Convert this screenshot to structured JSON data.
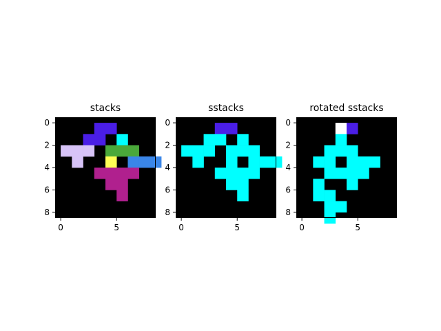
{
  "chart_data": [
    {
      "type": "heatmap",
      "title": "stacks",
      "xlabel": "",
      "ylabel": "",
      "xlim": [
        -0.5,
        8.5
      ],
      "ylim": [
        8.5,
        -0.5
      ],
      "xticks": [
        0,
        5
      ],
      "yticks": [
        0,
        2,
        4,
        6,
        8
      ],
      "grid": false,
      "background": "#000000",
      "cells": [
        {
          "row": 0,
          "col": 3,
          "color": "#4a1ee6"
        },
        {
          "row": 0,
          "col": 4,
          "color": "#4a1ee6"
        },
        {
          "row": 1,
          "col": 2,
          "color": "#4a1ee6"
        },
        {
          "row": 1,
          "col": 3,
          "color": "#4a1ee6"
        },
        {
          "row": 1,
          "col": 5,
          "color": "#00ffff"
        },
        {
          "row": 2,
          "col": 0,
          "color": "#d7c3f7"
        },
        {
          "row": 2,
          "col": 1,
          "color": "#d7c3f7"
        },
        {
          "row": 2,
          "col": 2,
          "color": "#d7c3f7"
        },
        {
          "row": 2,
          "col": 4,
          "color": "#4aa83a"
        },
        {
          "row": 2,
          "col": 5,
          "color": "#4aa83a"
        },
        {
          "row": 2,
          "col": 6,
          "color": "#4aa83a"
        },
        {
          "row": 3,
          "col": 1,
          "color": "#d7c3f7"
        },
        {
          "row": 3,
          "col": 4,
          "color": "#ffff55"
        },
        {
          "row": 3,
          "col": 6,
          "color": "#3a86e8"
        },
        {
          "row": 3,
          "col": 7,
          "color": "#3a86e8"
        },
        {
          "row": 3,
          "col": 8,
          "color": "#3a86e8"
        },
        {
          "row": 4,
          "col": 3,
          "color": "#b0208e"
        },
        {
          "row": 4,
          "col": 4,
          "color": "#b0208e"
        },
        {
          "row": 4,
          "col": 5,
          "color": "#b0208e"
        },
        {
          "row": 4,
          "col": 6,
          "color": "#b0208e"
        },
        {
          "row": 5,
          "col": 4,
          "color": "#b0208e"
        },
        {
          "row": 5,
          "col": 5,
          "color": "#b0208e"
        },
        {
          "row": 6,
          "col": 5,
          "color": "#b0208e"
        }
      ]
    },
    {
      "type": "heatmap",
      "title": "sstacks",
      "xlabel": "",
      "ylabel": "",
      "xlim": [
        -0.5,
        8.5
      ],
      "ylim": [
        8.5,
        -0.5
      ],
      "xticks": [
        0,
        5
      ],
      "yticks": [
        0,
        2,
        4,
        6,
        8
      ],
      "grid": false,
      "background": "#000000",
      "cells": [
        {
          "row": 0,
          "col": 3,
          "color": "#4a1ee6"
        },
        {
          "row": 0,
          "col": 4,
          "color": "#4a1ee6"
        },
        {
          "row": 1,
          "col": 2,
          "color": "#00ffff"
        },
        {
          "row": 1,
          "col": 3,
          "color": "#00ffff"
        },
        {
          "row": 1,
          "col": 5,
          "color": "#00ffff"
        },
        {
          "row": 2,
          "col": 0,
          "color": "#00ffff"
        },
        {
          "row": 2,
          "col": 1,
          "color": "#00ffff"
        },
        {
          "row": 2,
          "col": 2,
          "color": "#00ffff"
        },
        {
          "row": 2,
          "col": 4,
          "color": "#00ffff"
        },
        {
          "row": 2,
          "col": 5,
          "color": "#00ffff"
        },
        {
          "row": 2,
          "col": 6,
          "color": "#00ffff"
        },
        {
          "row": 3,
          "col": 1,
          "color": "#00ffff"
        },
        {
          "row": 3,
          "col": 4,
          "color": "#00ffff"
        },
        {
          "row": 3,
          "col": 6,
          "color": "#00ffff"
        },
        {
          "row": 3,
          "col": 7,
          "color": "#00ffff"
        },
        {
          "row": 3,
          "col": 8,
          "color": "#00ffff"
        },
        {
          "row": 4,
          "col": 3,
          "color": "#00ffff"
        },
        {
          "row": 4,
          "col": 4,
          "color": "#00ffff"
        },
        {
          "row": 4,
          "col": 5,
          "color": "#00ffff"
        },
        {
          "row": 4,
          "col": 6,
          "color": "#00ffff"
        },
        {
          "row": 5,
          "col": 4,
          "color": "#00ffff"
        },
        {
          "row": 5,
          "col": 5,
          "color": "#00ffff"
        },
        {
          "row": 6,
          "col": 5,
          "color": "#00ffff"
        }
      ]
    },
    {
      "type": "heatmap",
      "title": "rotated sstacks",
      "xlabel": "",
      "ylabel": "",
      "xlim": [
        -0.5,
        8.5
      ],
      "ylim": [
        8.5,
        -0.5
      ],
      "xticks": [
        0,
        5
      ],
      "yticks": [
        0,
        2,
        4,
        6,
        8
      ],
      "grid": false,
      "background": "#000000",
      "cells": [
        {
          "row": 0,
          "col": 3,
          "color": "#ffffff"
        },
        {
          "row": 0,
          "col": 4,
          "color": "#4a1ee6"
        },
        {
          "row": 1,
          "col": 3,
          "color": "#00ffff"
        },
        {
          "row": 2,
          "col": 2,
          "color": "#00ffff"
        },
        {
          "row": 2,
          "col": 3,
          "color": "#00ffff"
        },
        {
          "row": 2,
          "col": 4,
          "color": "#00ffff"
        },
        {
          "row": 3,
          "col": 1,
          "color": "#00ffff"
        },
        {
          "row": 3,
          "col": 2,
          "color": "#00ffff"
        },
        {
          "row": 3,
          "col": 4,
          "color": "#00ffff"
        },
        {
          "row": 3,
          "col": 5,
          "color": "#00ffff"
        },
        {
          "row": 3,
          "col": 6,
          "color": "#00ffff"
        },
        {
          "row": 4,
          "col": 2,
          "color": "#00ffff"
        },
        {
          "row": 4,
          "col": 3,
          "color": "#00ffff"
        },
        {
          "row": 4,
          "col": 4,
          "color": "#00ffff"
        },
        {
          "row": 4,
          "col": 5,
          "color": "#00ffff"
        },
        {
          "row": 5,
          "col": 1,
          "color": "#00ffff"
        },
        {
          "row": 5,
          "col": 4,
          "color": "#00ffff"
        },
        {
          "row": 6,
          "col": 1,
          "color": "#00ffff"
        },
        {
          "row": 6,
          "col": 2,
          "color": "#00ffff"
        },
        {
          "row": 7,
          "col": 2,
          "color": "#00ffff"
        },
        {
          "row": 7,
          "col": 3,
          "color": "#00ffff"
        },
        {
          "row": 8,
          "col": 2,
          "color": "#00ffff"
        }
      ]
    }
  ]
}
